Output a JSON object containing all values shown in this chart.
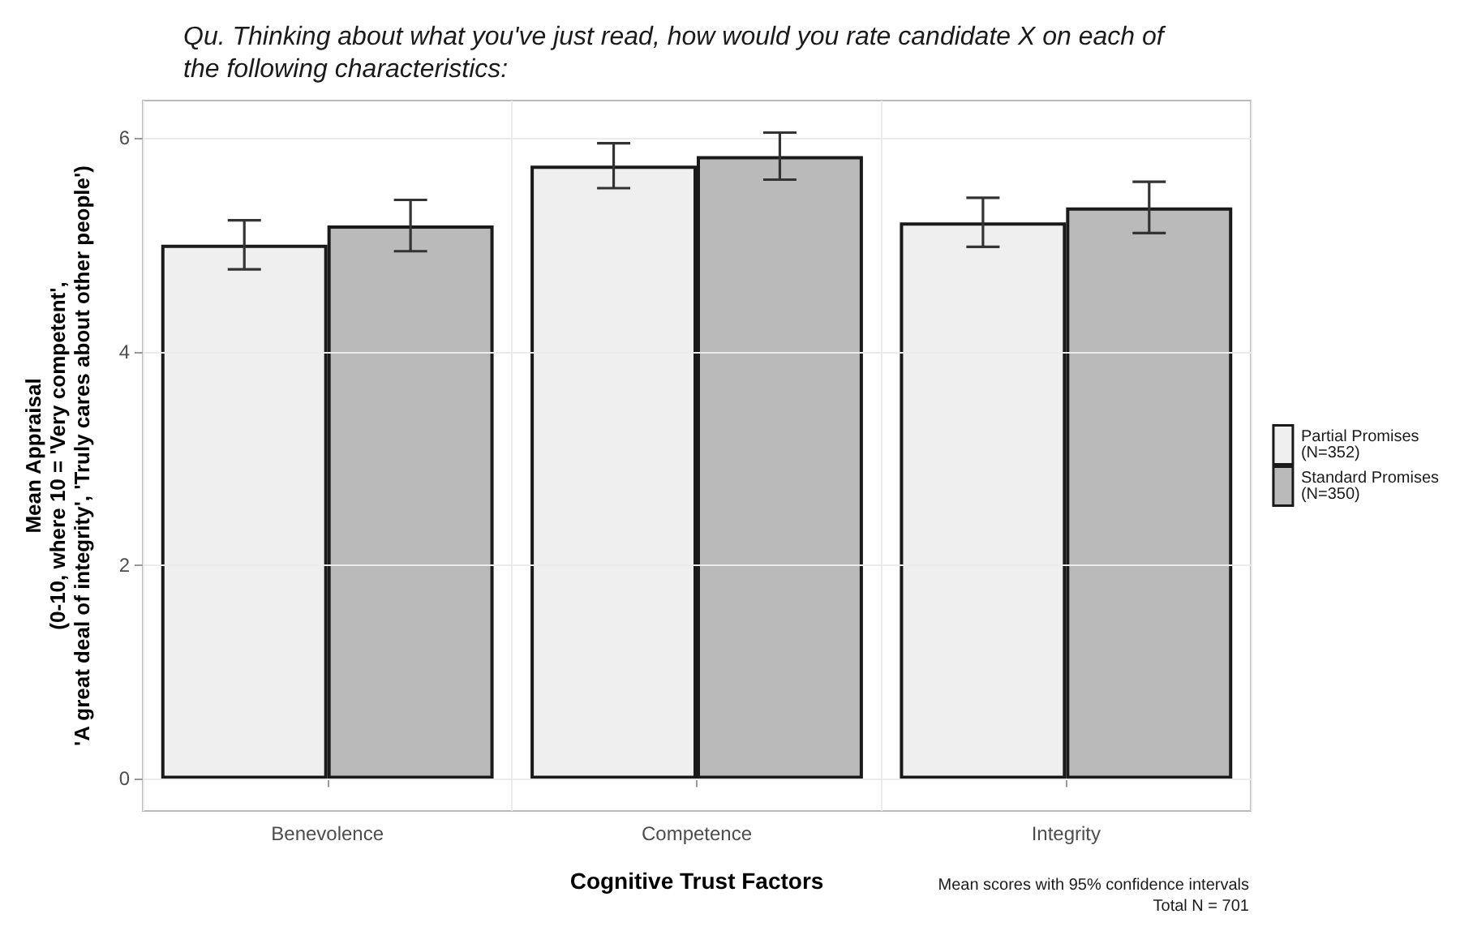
{
  "chart_data": {
    "type": "bar",
    "title": "Qu. Thinking about what you've just read, how would you rate candidate X on each of\nthe following characteristics:",
    "xlabel": "Cognitive Trust Factors",
    "ylabel": "Mean Appraisal\n(0-10, where 10 = 'Very competent',\n'A great deal of integrity', 'Truly cares about other people')",
    "categories": [
      "Benevolence",
      "Competence",
      "Integrity"
    ],
    "series": [
      {
        "name": "Partial Promises\n(N=352)",
        "color": "#efefef",
        "values": [
          5.0,
          5.74,
          5.21
        ],
        "errors": [
          0.23,
          0.21,
          0.23
        ]
      },
      {
        "name": "Standard Promises\n(N=350)",
        "color": "#bababa",
        "values": [
          5.18,
          5.83,
          5.35
        ],
        "errors": [
          0.24,
          0.22,
          0.24
        ]
      }
    ],
    "ylim": [
      -0.3,
      6.35
    ],
    "yticks": [
      0,
      2,
      4,
      6
    ],
    "grid": true,
    "legend": "right",
    "annotations": [
      "Mean scores with 95% confidence intervals",
      "Total N = 701"
    ]
  }
}
